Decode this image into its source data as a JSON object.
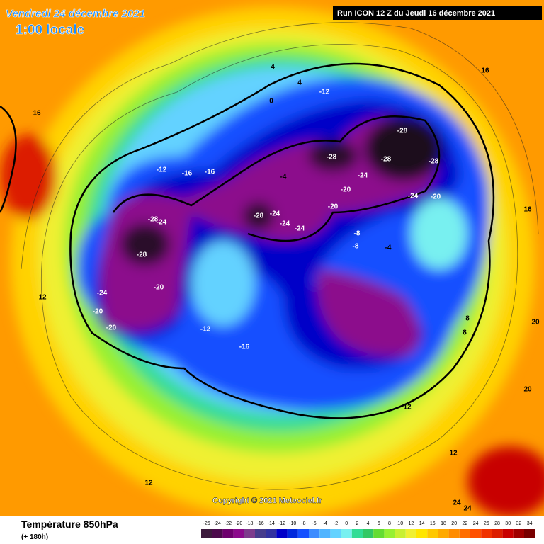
{
  "header": {
    "date": "Vendredi 24 décembre 2021",
    "time": "1:00 locale",
    "run": "Run ICON 12 Z du Jeudi 16 décembre 2021"
  },
  "copyright": "Copyright © 2021 Meteociel.fr",
  "footer": {
    "title": "Température 850hPa",
    "lead": "(+ 180h)"
  },
  "scale": {
    "ticks": [
      -26,
      -24,
      -22,
      -20,
      -18,
      -16,
      -14,
      -12,
      -10,
      -8,
      -6,
      -4,
      -2,
      0,
      2,
      4,
      6,
      8,
      10,
      12,
      14,
      16,
      18,
      20,
      22,
      24,
      26,
      28,
      30,
      32,
      34
    ],
    "colors": [
      "#3c1a3c",
      "#4b0a4b",
      "#6e006e",
      "#8c0a8c",
      "#7d3c8c",
      "#463c8c",
      "#3232a0",
      "#0000c8",
      "#0028dc",
      "#1450ff",
      "#3c8cff",
      "#50b4ff",
      "#64d2ff",
      "#78f0f0",
      "#32dc96",
      "#32c864",
      "#64dc32",
      "#96f032",
      "#c8f032",
      "#f0f032",
      "#ffe600",
      "#ffc800",
      "#ffaa00",
      "#ff8c00",
      "#ff6e00",
      "#ff5000",
      "#f03200",
      "#dc1e00",
      "#c80000",
      "#a00000",
      "#780000"
    ]
  },
  "map_labels": [
    "-28",
    "-28",
    "-28",
    "-28",
    "-28",
    "-24",
    "-24",
    "-20",
    "-20",
    "-24",
    "-24",
    "-24",
    "-20",
    "-24",
    "-28",
    "-28",
    "-20",
    "-24",
    "-20",
    "-20",
    "-16",
    "-16",
    "-12",
    "-12",
    "-8",
    "-8",
    "-4",
    "-4",
    "0",
    "4",
    "4",
    "8",
    "8",
    "12",
    "12",
    "12",
    "16",
    "16",
    "16",
    "20",
    "20",
    "24",
    "24",
    "12",
    "-12",
    "-16"
  ]
}
